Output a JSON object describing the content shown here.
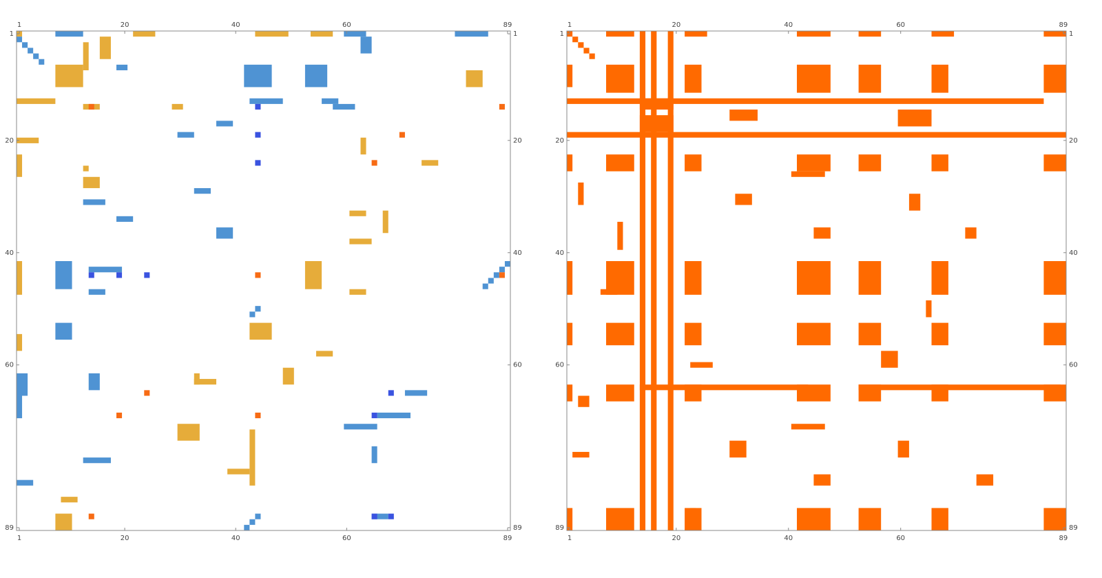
{
  "chart_data": [
    {
      "type": "matrix",
      "xlim": [
        0.5,
        89.5
      ],
      "ylim": [
        0.5,
        89.5
      ],
      "xticks": [
        1,
        20,
        40,
        60,
        89
      ],
      "yticks": [
        1,
        20,
        40,
        60,
        89
      ],
      "layers": [
        {
          "color": "#e6ac3a",
          "cells": [
            [
              1,
              1,
              1,
              1
            ],
            [
              1,
              22,
              1,
              4
            ],
            [
              1,
              44,
              1,
              6
            ],
            [
              1,
              54,
              1,
              4
            ],
            [
              7,
              8,
              4,
              5
            ],
            [
              13,
              1,
              1,
              7
            ],
            [
              14,
              13,
              1,
              3
            ],
            [
              20,
              1,
              1,
              4
            ],
            [
              25,
              13,
              1,
              1
            ],
            [
              42,
              1,
              6,
              1
            ],
            [
              42,
              53,
              5,
              3
            ],
            [
              53,
              43,
              3,
              4
            ],
            [
              87,
              8,
              3,
              3
            ],
            [
              63,
              33,
              1,
              4
            ],
            [
              71,
              30,
              3,
              4
            ],
            [
              33,
              61,
              1,
              3
            ],
            [
              38,
              61,
              1,
              4
            ],
            [
              47,
              61,
              1,
              3
            ],
            [
              33,
              67,
              4,
              1
            ],
            [
              8,
              82,
              3,
              3
            ],
            [
              72,
              43,
              10,
              1
            ],
            [
              79,
              39,
              1,
              4
            ],
            [
              14,
              29,
              1,
              2
            ],
            [
              23,
              1,
              4,
              1
            ],
            [
              3,
              13,
              5,
              1
            ],
            [
              2,
              16,
              4,
              2
            ],
            [
              27,
              13,
              2,
              3
            ],
            [
              62,
              33,
              2,
              1
            ],
            [
              61,
              49,
              3,
              2
            ],
            [
              84,
              9,
              1,
              3
            ],
            [
              58,
              55,
              1,
              3
            ],
            [
              20,
              63,
              3,
              1
            ],
            [
              24,
              74,
              1,
              3
            ],
            [
              55,
              1,
              3,
              1
            ]
          ]
        },
        {
          "color": "#4f93d3",
          "cells": [
            [
              1,
              8,
              1,
              5
            ],
            [
              1,
              60,
              1,
              4
            ],
            [
              1,
              80,
              1,
              6
            ],
            [
              7,
              42,
              4,
              5
            ],
            [
              7,
              53,
              4,
              4
            ],
            [
              13,
              43,
              1,
              6
            ],
            [
              13,
              56,
              1,
              3
            ],
            [
              42,
              8,
              5,
              3
            ],
            [
              53,
              8,
              3,
              3
            ],
            [
              31,
              13,
              1,
              4
            ],
            [
              19,
              30,
              1,
              3
            ],
            [
              43,
              14,
              1,
              6
            ],
            [
              47,
              14,
              1,
              3
            ],
            [
              62,
              1,
              4,
              2
            ],
            [
              66,
              1,
              4,
              1
            ],
            [
              65,
              71,
              1,
              4
            ],
            [
              71,
              60,
              1,
              6
            ],
            [
              75,
              65,
              3,
              1
            ],
            [
              87,
              65,
              1,
              3
            ],
            [
              2,
              1,
              1,
              1
            ],
            [
              3,
              2,
              1,
              1
            ],
            [
              4,
              3,
              1,
              1
            ],
            [
              5,
              4,
              1,
              1
            ],
            [
              6,
              5,
              1,
              1
            ],
            [
              50,
              44,
              1,
              1
            ],
            [
              51,
              43,
              1,
              1
            ],
            [
              42,
              89,
              1,
              1
            ],
            [
              43,
              88,
              1,
              1
            ],
            [
              44,
              87,
              1,
              1
            ],
            [
              45,
              86,
              1,
              1
            ],
            [
              46,
              85,
              1,
              1
            ],
            [
              88,
              43,
              1,
              1
            ],
            [
              89,
              42,
              1,
              1
            ],
            [
              87,
              44,
              1,
              1
            ],
            [
              2,
              63,
              3,
              2
            ],
            [
              14,
              58,
              1,
              4
            ],
            [
              17,
              37,
              1,
              3
            ],
            [
              29,
              33,
              1,
              3
            ],
            [
              36,
              37,
              2,
              3
            ],
            [
              62,
              14,
              3,
              2
            ],
            [
              77,
              13,
              1,
              5
            ],
            [
              81,
              1,
              1,
              3
            ],
            [
              34,
              19,
              1,
              3
            ],
            [
              69,
              66,
              1,
              6
            ],
            [
              7,
              19,
              1,
              2
            ]
          ]
        },
        {
          "color": "#3a53e0",
          "cells": [
            [
              14,
              44,
              1,
              1
            ],
            [
              19,
              44,
              1,
              1
            ],
            [
              24,
              44,
              1,
              1
            ],
            [
              44,
              14,
              1,
              1
            ],
            [
              44,
              19,
              1,
              1
            ],
            [
              44,
              24,
              1,
              1
            ],
            [
              65,
              68,
              1,
              1
            ],
            [
              69,
              65,
              1,
              1
            ],
            [
              87,
              65,
              1,
              1
            ],
            [
              87,
              68,
              1,
              1
            ]
          ]
        },
        {
          "color": "#f76b14",
          "cells": [
            [
              14,
              14,
              1,
              1
            ],
            [
              44,
              44,
              1,
              1
            ],
            [
              65,
              24,
              1,
              1
            ],
            [
              69,
              19,
              1,
              1
            ],
            [
              87,
              14,
              1,
              1
            ],
            [
              44,
              88,
              1,
              1
            ],
            [
              14,
              88,
              1,
              1
            ],
            [
              24,
              65,
              1,
              1
            ],
            [
              19,
              70,
              1,
              1
            ],
            [
              69,
              44,
              1,
              1
            ]
          ]
        }
      ]
    },
    {
      "type": "matrix",
      "xlim": [
        0.5,
        89.5
      ],
      "ylim": [
        0.5,
        89.5
      ],
      "xticks": [
        1,
        20,
        40,
        60,
        89
      ],
      "yticks": [
        1,
        20,
        40,
        60,
        89
      ],
      "block_rows": [
        [
          7,
          5
        ],
        [
          23,
          3
        ],
        [
          42,
          6
        ],
        [
          53,
          4
        ],
        [
          64,
          3
        ],
        [
          86,
          4
        ]
      ],
      "block_cols": [
        [
          8,
          5
        ],
        [
          22,
          3
        ],
        [
          42,
          6
        ],
        [
          53,
          4
        ],
        [
          66,
          3
        ],
        [
          86,
          4
        ]
      ],
      "layers": [
        {
          "color": "#ff6a00",
          "cells": [
            [
              13,
              1,
              1,
              85
            ],
            [
              19,
              1,
              1,
              89
            ],
            [
              16,
              14,
              3,
              6
            ],
            [
              1,
              14,
              89,
              1
            ],
            [
              1,
              16,
              89,
              1
            ],
            [
              1,
              19,
              89,
              1
            ],
            [
              13,
              14,
              2,
              6
            ],
            [
              1,
              1,
              1,
              1
            ],
            [
              2,
              2,
              1,
              1
            ],
            [
              3,
              3,
              1,
              1
            ],
            [
              4,
              4,
              1,
              1
            ],
            [
              5,
              5,
              1,
              1
            ],
            [
              1,
              8,
              1,
              5
            ],
            [
              1,
              22,
              1,
              4
            ],
            [
              1,
              42,
              1,
              6
            ],
            [
              1,
              53,
              1,
              4
            ],
            [
              1,
              66,
              1,
              4
            ],
            [
              1,
              86,
              1,
              4
            ],
            [
              7,
              1,
              4,
              1
            ],
            [
              23,
              1,
              3,
              1
            ],
            [
              42,
              1,
              6,
              1
            ],
            [
              53,
              1,
              4,
              1
            ],
            [
              64,
              1,
              3,
              1
            ],
            [
              86,
              1,
              4,
              1
            ],
            [
              64,
              14,
              1,
              30
            ],
            [
              64,
              53,
              1,
              36
            ],
            [
              15,
              30,
              2,
              5
            ],
            [
              15,
              60,
              3,
              6
            ],
            [
              30,
              31,
              2,
              3
            ],
            [
              30,
              62,
              3,
              2
            ],
            [
              36,
              45,
              2,
              3
            ],
            [
              36,
              72,
              2,
              2
            ],
            [
              58,
              57,
              3,
              3
            ],
            [
              60,
              23,
              1,
              4
            ],
            [
              74,
              30,
              3,
              3
            ],
            [
              74,
              60,
              3,
              2
            ],
            [
              80,
              45,
              2,
              3
            ],
            [
              80,
              74,
              2,
              3
            ],
            [
              28,
              3,
              4,
              1
            ],
            [
              47,
              7,
              1,
              3
            ],
            [
              66,
              3,
              2,
              2
            ],
            [
              76,
              2,
              1,
              3
            ],
            [
              86,
              23,
              1,
              1
            ],
            [
              26,
              41,
              1,
              6
            ],
            [
              71,
              41,
              1,
              6
            ],
            [
              35,
              10,
              5,
              1
            ],
            [
              49,
              65,
              3,
              1
            ]
          ]
        }
      ]
    }
  ]
}
